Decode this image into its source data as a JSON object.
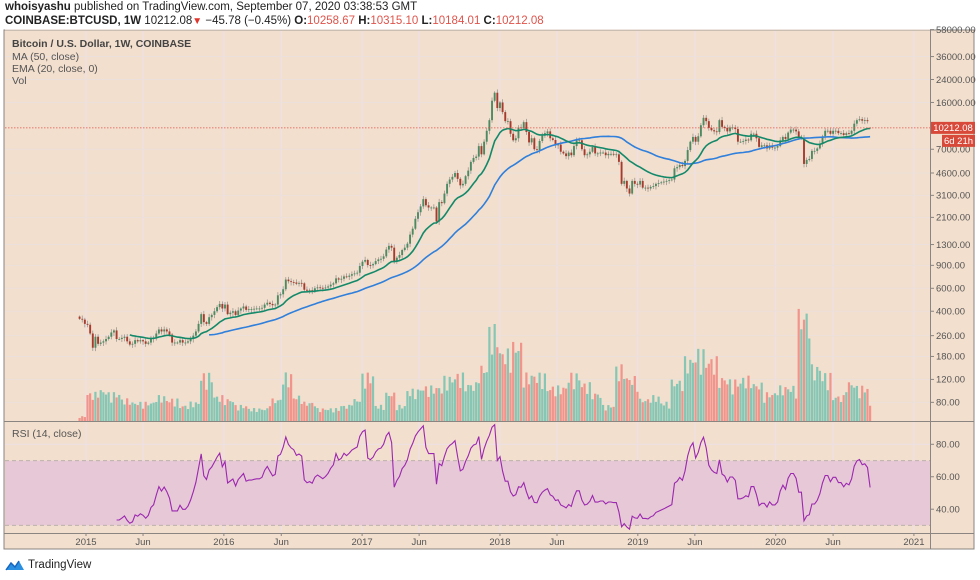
{
  "header": {
    "author": "whoisyashu",
    "published": "published on TradingView.com, September 07, 2020 03:38:53 GMT",
    "symbol": "COINBASE:BTCUSD, 1W",
    "last": "10212.08",
    "change": "−45.78 (−0.45%)",
    "change_direction": "down",
    "o_label": "O:",
    "o": "10258.67",
    "h_label": "H:",
    "h": "10315.10",
    "l_label": "L:",
    "l": "10184.01",
    "c_label": "C:",
    "c": "10212.08"
  },
  "legend": {
    "title": "Bitcoin / U.S. Dollar, 1W, COINBASE",
    "ma": "MA (50, close)",
    "ema": "EMA (20, close, 0)",
    "vol": "Vol",
    "rsi": "RSI (14, close)"
  },
  "price_label": {
    "value": "10212.08",
    "countdown": "6d 21h"
  },
  "footer": {
    "brand": "TradingView"
  },
  "colors": {
    "background": "#f2dfcd",
    "up_candle": "#4b8a62",
    "down_candle": "#a63a2d",
    "up_volume": "#86c6b4",
    "down_volume": "#f0948c",
    "ema": "#13896a",
    "ma": "#2f7fdc",
    "rsi": "#9c27b0",
    "rsi_band": "#e6c8d6",
    "price_line": "#e0534a"
  },
  "chart_data": {
    "type": "candlestick",
    "interval": "1W",
    "scale": "log",
    "ylim": [
      58,
      58000
    ],
    "grid": true,
    "price_ticks": [
      "58000.00",
      "36000.00",
      "24000.00",
      "16000.00",
      "7000.00",
      "4600.00",
      "3100.00",
      "2100.00",
      "1300.00",
      "900.00",
      "600.00",
      "400.00",
      "260.00",
      "180.00",
      "120.00",
      "80.00"
    ],
    "x_ticks": [
      {
        "label": "2015",
        "date": "2015-01-01"
      },
      {
        "label": "Jun",
        "date": "2015-06-01"
      },
      {
        "label": "2016",
        "date": "2016-01-01"
      },
      {
        "label": "Jun",
        "date": "2016-06-01"
      },
      {
        "label": "2017",
        "date": "2017-01-01"
      },
      {
        "label": "Jun",
        "date": "2017-06-01"
      },
      {
        "label": "2018",
        "date": "2018-01-01"
      },
      {
        "label": "Jun",
        "date": "2018-06-01"
      },
      {
        "label": "2019",
        "date": "2019-01-01"
      },
      {
        "label": "Jun",
        "date": "2019-06-01"
      },
      {
        "label": "2020",
        "date": "2020-01-01"
      },
      {
        "label": "Jun",
        "date": "2020-06-01"
      },
      {
        "label": "2021",
        "date": "2021-01-01"
      }
    ],
    "last_bar_date": "2020-09-07",
    "weekly_close": [
      350,
      345,
      320,
      315,
      270,
      210,
      255,
      225,
      230,
      235,
      245,
      255,
      275,
      285,
      245,
      245,
      250,
      255,
      235,
      222,
      225,
      240,
      235,
      240,
      235,
      225,
      230,
      245,
      250,
      270,
      290,
      280,
      290,
      280,
      265,
      230,
      230,
      230,
      240,
      230,
      230,
      235,
      245,
      260,
      280,
      320,
      380,
      330,
      320,
      360,
      375,
      400,
      430,
      455,
      420,
      450,
      380,
      390,
      400,
      375,
      405,
      420,
      435,
      410,
      415,
      415,
      418,
      420,
      420,
      425,
      450,
      465,
      455,
      445,
      450,
      530,
      540,
      590,
      700,
      680,
      670,
      665,
      650,
      660,
      655,
      585,
      575,
      580,
      575,
      600,
      610,
      605,
      600,
      608,
      620,
      640,
      655,
      715,
      700,
      710,
      740,
      735,
      750,
      770,
      780,
      790,
      890,
      960,
      990,
      905,
      900,
      920,
      970,
      1000,
      1010,
      1055,
      1190,
      1270,
      1230,
      960,
      1030,
      1080,
      1180,
      1230,
      1320,
      1550,
      1720,
      2050,
      2300,
      2550,
      2900,
      2600,
      2500,
      2500,
      2500,
      1950,
      2750,
      2700,
      3200,
      3800,
      4100,
      4300,
      4600,
      4150,
      3700,
      3800,
      4350,
      4800,
      5600,
      6000,
      6150,
      7400,
      6400,
      8000,
      9700,
      11700,
      16500,
      19000,
      14500,
      16000,
      13500,
      11500,
      11500,
      9200,
      8200,
      8500,
      10300,
      10200,
      11300,
      9500,
      7900,
      8500,
      7000,
      6900,
      8100,
      8900,
      9300,
      9600,
      8500,
      8250,
      7500,
      7600,
      6700,
      6500,
      6200,
      6600,
      6300,
      7400,
      8200,
      8200,
      7000,
      6300,
      6400,
      6700,
      7300,
      6500,
      6500,
      6600,
      6600,
      6300,
      6450,
      6450,
      6400,
      6400,
      5600,
      3800,
      4000,
      3500,
      3200,
      4000,
      3800,
      3750,
      4000,
      3550,
      3550,
      3500,
      3600,
      3650,
      3800,
      3850,
      3900,
      3950,
      4000,
      4050,
      4100,
      5000,
      5100,
      5300,
      5200,
      5700,
      6900,
      8000,
      8700,
      8000,
      8800,
      10700,
      12200,
      11500,
      10200,
      9800,
      9600,
      9500,
      11700,
      10400,
      10200,
      9600,
      10300,
      10300,
      10000,
      8000,
      8000,
      8100,
      8300,
      8200,
      9200,
      9200,
      8500,
      7300,
      7500,
      7500,
      7100,
      7500,
      7200,
      7200,
      7400,
      8200,
      8700,
      8400,
      9400,
      9900,
      9900,
      9600,
      8600,
      8600,
      5400,
      5800,
      5900,
      6800,
      6800,
      7100,
      7700,
      8800,
      9700,
      9700,
      9200,
      9700,
      9700,
      9300,
      9300,
      9000,
      9300,
      9200,
      9700,
      11000,
      11700,
      11900,
      11600,
      11700,
      11500,
      10212.08
    ],
    "volume_monthly_relative": [
      3,
      18,
      20,
      18,
      14,
      12,
      12,
      16,
      14,
      10,
      12,
      30,
      16,
      14,
      10,
      8,
      8,
      14,
      30,
      16,
      12,
      8,
      8,
      10,
      14,
      30,
      10,
      18,
      10,
      20,
      22,
      22,
      28,
      30,
      24,
      35,
      60,
      45,
      50,
      30,
      30,
      22,
      22,
      30,
      24,
      18,
      10,
      35,
      28,
      14,
      16,
      12,
      26,
      40,
      45,
      40,
      28,
      26,
      28,
      24,
      18,
      22,
      22,
      70,
      35,
      30,
      16,
      25,
      22,
      10
    ],
    "indicators": {
      "ma_period": 50,
      "ema_period": 20,
      "rsi_period": 14,
      "rsi_ticks": [
        "80.00",
        "60.00",
        "40.00"
      ],
      "rsi_band": [
        30,
        70
      ]
    }
  }
}
